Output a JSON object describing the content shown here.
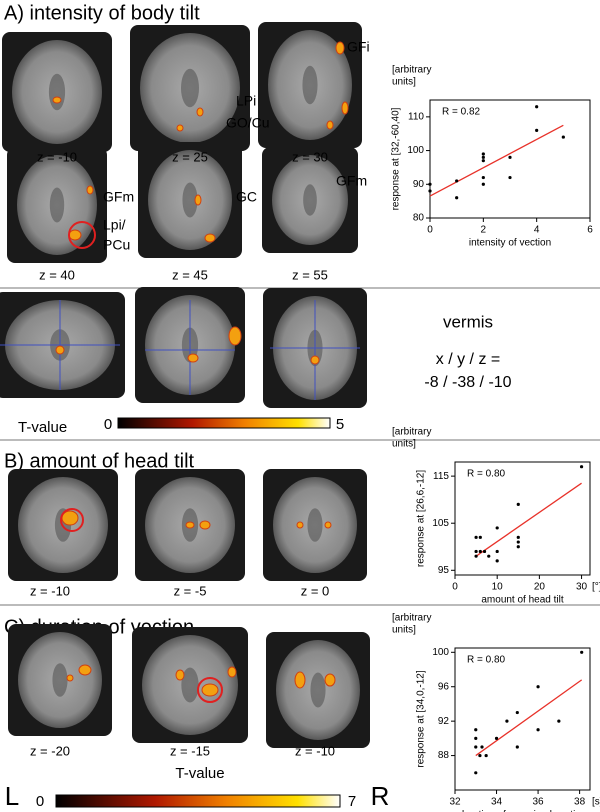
{
  "panel_a": {
    "title": "A) intensity of body tilt",
    "slice_labels": [
      "z = -10",
      "z = 25",
      "z = 30",
      "z = 40",
      "z = 45",
      "z = 55"
    ],
    "annotations": [
      "GFi",
      "LPi",
      "GO/Cu",
      "GFm",
      "Lpi/",
      "PCu",
      "GC",
      "GFm"
    ]
  },
  "vermis": {
    "label": "vermis",
    "coord_label": "x / y / z =",
    "coord_values": "-8 / -38  / -10",
    "colorbar_title": "T-value",
    "colorbar_min": 0,
    "colorbar_max": 5
  },
  "panel_b": {
    "title": "B) amount of head tilt",
    "slice_labels": [
      "z = -10",
      "z = -5",
      "z = 0"
    ]
  },
  "panel_c": {
    "title": "C) duration of vection",
    "slice_labels": [
      "z = -20",
      "z = -15",
      "z = -10"
    ],
    "colorbar_title": "T-value",
    "colorbar_min": 0,
    "colorbar_max": 7,
    "left_label": "L",
    "right_label": "R"
  },
  "chart_data": [
    {
      "type": "scatter",
      "units_label": [
        "[arbitrary",
        "units]"
      ],
      "r_label": "R = 0.82",
      "ylabel": "response at [32,-60,40]",
      "xlabel": "intensity of vection",
      "color": "#000000",
      "fit_color": "#e8322a",
      "x": [
        0,
        0,
        1,
        1,
        2,
        2,
        2,
        2,
        2,
        3,
        3,
        4,
        4,
        5
      ],
      "values": [
        88,
        90,
        86,
        91,
        90,
        92,
        97,
        98,
        99,
        92,
        98,
        106,
        113,
        104
      ],
      "fit": {
        "x": [
          0,
          5
        ],
        "y": [
          86.5,
          107.5
        ]
      },
      "xlim": [
        0,
        6
      ],
      "ylim": [
        80,
        115
      ],
      "xticks": [
        0,
        2,
        4,
        6
      ],
      "yticks": [
        80,
        90,
        100,
        110
      ]
    },
    {
      "type": "scatter",
      "units_label": [
        "[arbitrary",
        "units]"
      ],
      "r_label": "R = 0.80",
      "ylabel": "response at [26,6,-12]",
      "xlabel": "amount of head tilt",
      "x_unit": "[°]",
      "color": "#000000",
      "fit_color": "#e8322a",
      "x": [
        5,
        5,
        5,
        6,
        6,
        7,
        8,
        10,
        10,
        10,
        15,
        15,
        15,
        15,
        30
      ],
      "values": [
        98,
        99,
        102,
        99,
        102,
        99,
        98,
        97,
        99,
        104,
        100,
        101,
        102,
        109,
        117
      ],
      "fit": {
        "x": [
          5,
          30
        ],
        "y": [
          98,
          113.5
        ]
      },
      "xlim": [
        0,
        32
      ],
      "ylim": [
        94,
        118
      ],
      "xticks": [
        0,
        10,
        20,
        30
      ],
      "yticks": [
        95,
        105,
        115
      ]
    },
    {
      "type": "scatter",
      "units_label": [
        "[arbitrary",
        "units]"
      ],
      "r_label": "R = 0.80",
      "ylabel": "response at [34,0,-12]",
      "xlabel": "duration of perceived vection",
      "x_unit": "[s]",
      "color": "#000000",
      "fit_color": "#e8322a",
      "x": [
        33,
        33,
        33,
        33,
        33.2,
        33.3,
        33.5,
        34,
        34.5,
        35,
        35,
        36,
        36,
        37,
        38.1
      ],
      "values": [
        86,
        89,
        90,
        91,
        88,
        89,
        88,
        90,
        92,
        89,
        93,
        91,
        96,
        92,
        100
      ],
      "fit": {
        "x": [
          33,
          38.1
        ],
        "y": [
          88,
          96.8
        ]
      },
      "xlim": [
        32,
        38.5
      ],
      "ylim": [
        84,
        100.5
      ],
      "xticks": [
        32,
        34,
        36,
        38
      ],
      "yticks": [
        88,
        92,
        96,
        100
      ]
    }
  ]
}
